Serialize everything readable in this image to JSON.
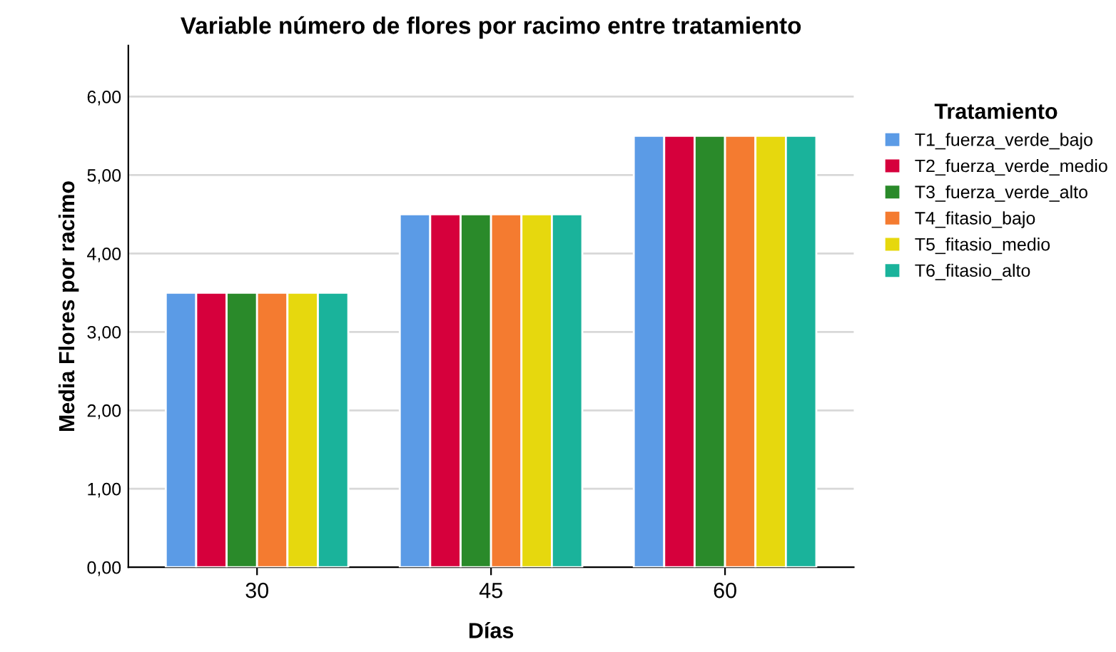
{
  "chart_data": {
    "type": "bar",
    "title": "Variable número de flores por racimo entre tratamiento",
    "xlabel": "Días",
    "ylabel": "Media Flores por racimo",
    "legend_title": "Tratamiento",
    "categories": [
      "30",
      "45",
      "60"
    ],
    "series": [
      {
        "name": "T1_fuerza_verde_bajo",
        "color": "#5b9be6",
        "values": [
          3.5,
          4.5,
          5.5
        ]
      },
      {
        "name": "T2_fuerza_verde_medio",
        "color": "#d6003c",
        "values": [
          3.5,
          4.5,
          5.5
        ]
      },
      {
        "name": "T3_fuerza_verde_alto",
        "color": "#2a8a2a",
        "values": [
          3.5,
          4.5,
          5.5
        ]
      },
      {
        "name": "T4_fitasio_bajo",
        "color": "#f47b30",
        "values": [
          3.5,
          4.5,
          5.5
        ]
      },
      {
        "name": "T5_fitasio_medio",
        "color": "#e6d80e",
        "values": [
          3.5,
          4.5,
          5.5
        ]
      },
      {
        "name": "T6_fitasio_alto",
        "color": "#1ab39b",
        "values": [
          3.5,
          4.5,
          5.5
        ]
      }
    ],
    "ylim": [
      0,
      6.65
    ],
    "yticks": [
      {
        "value": 0,
        "label": "0,00"
      },
      {
        "value": 1,
        "label": "1,00"
      },
      {
        "value": 2,
        "label": "2,00"
      },
      {
        "value": 3,
        "label": "3,00"
      },
      {
        "value": 4,
        "label": "4,00"
      },
      {
        "value": 5,
        "label": "5,00"
      },
      {
        "value": 6,
        "label": "6,00"
      }
    ],
    "grid": "y",
    "legend": "right"
  }
}
